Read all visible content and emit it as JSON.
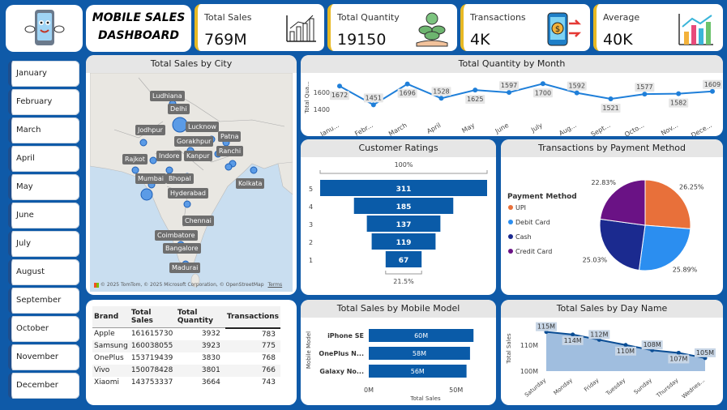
{
  "header": {
    "title_line1": "MOBILE SALES",
    "title_line2": "DASHBOARD"
  },
  "kpis": [
    {
      "label": "Total Sales",
      "value": "769M",
      "icon": "bar-chart-icon"
    },
    {
      "label": "Total Quantity",
      "value": "19150",
      "icon": "money-stack-icon"
    },
    {
      "label": "Transactions",
      "value": "4K",
      "icon": "phone-payment-icon"
    },
    {
      "label": "Average",
      "value": "40K",
      "icon": "colored-bars-icon"
    }
  ],
  "months": [
    "January",
    "February",
    "March",
    "April",
    "May",
    "June",
    "July",
    "August",
    "September",
    "October",
    "November",
    "December"
  ],
  "map": {
    "title": "Total Sales by City",
    "cities": [
      "Ludhiana",
      "Delhi",
      "Jodhpur",
      "Lucknow",
      "Patna",
      "Gorakhpur",
      "Ranchi",
      "Indore",
      "Kanpur",
      "Rajkot",
      "Mumbai",
      "Bhopal",
      "Kolkata",
      "Hyderabad",
      "Chennai",
      "Coimbatore",
      "Bangalore",
      "Madurai"
    ],
    "attribution": "© 2025 TomTom, © 2025 Microsoft Corporation, © OpenStreetMap",
    "terms": "Terms"
  },
  "brand_table": {
    "headers": [
      "Brand",
      "Total Sales",
      "Total Quantity",
      "Transactions"
    ],
    "rows": [
      [
        "Apple",
        "161615730",
        "3932",
        "783"
      ],
      [
        "Samsung",
        "160038055",
        "3923",
        "775"
      ],
      [
        "OnePlus",
        "153719439",
        "3830",
        "768"
      ],
      [
        "Vivo",
        "150078428",
        "3801",
        "766"
      ],
      [
        "Xiaomi",
        "143753337",
        "3664",
        "743"
      ]
    ]
  },
  "chart_data": [
    {
      "type": "line",
      "title": "Total Quantity by Month",
      "ylabel": "Total Qua...",
      "x": [
        "Janu...",
        "Febr...",
        "March",
        "April",
        "May",
        "June",
        "July",
        "Aug...",
        "Sept...",
        "Octo...",
        "Nov...",
        "Dece..."
      ],
      "values": [
        1672,
        1451,
        1696,
        1528,
        1625,
        1597,
        1700,
        1592,
        1521,
        1577,
        1582,
        1609
      ],
      "yticks": [
        "1400",
        "1600"
      ],
      "ylim": [
        1350,
        1750
      ]
    },
    {
      "type": "bar",
      "title": "Customer Ratings",
      "categories": [
        "5",
        "4",
        "3",
        "2",
        "1"
      ],
      "values": [
        311,
        185,
        137,
        119,
        67
      ],
      "top_label": "100%",
      "bottom_label": "21.5%"
    },
    {
      "type": "pie",
      "title": "Transactions by Payment Method",
      "legend_title": "Payment Method",
      "categories": [
        "UPI",
        "Debit Card",
        "Cash",
        "Credit Card"
      ],
      "values": [
        26.25,
        25.89,
        25.03,
        22.83
      ],
      "labels": [
        "26.25%",
        "25.89%",
        "25.03%",
        "22.83%"
      ],
      "colors": [
        "#e8703a",
        "#2b8ef0",
        "#1b2a8f",
        "#6a1285"
      ]
    },
    {
      "type": "bar",
      "title": "Total Sales by Mobile Model",
      "ylabel": "Mobile Model",
      "xlabel": "Total Sales",
      "categories": [
        "iPhone SE",
        "OnePlus N...",
        "Galaxy No..."
      ],
      "values": [
        60,
        58,
        56
      ],
      "labels": [
        "60M",
        "58M",
        "56M"
      ],
      "xticks": [
        "0M",
        "50M"
      ],
      "xlim": [
        0,
        65
      ]
    },
    {
      "type": "area",
      "title": "Total Sales by Day Name",
      "ylabel": "Total Sales",
      "x": [
        "Saturday",
        "Monday",
        "Friday",
        "Tuesday",
        "Sunday",
        "Thursday",
        "Wednes..."
      ],
      "values": [
        115,
        114,
        112,
        110,
        108,
        107,
        105
      ],
      "labels": [
        "115M",
        "114M",
        "112M",
        "110M",
        "108M",
        "107M",
        "105M"
      ],
      "yticks": [
        "100M",
        "110M"
      ],
      "ylim": [
        100,
        118
      ]
    }
  ]
}
